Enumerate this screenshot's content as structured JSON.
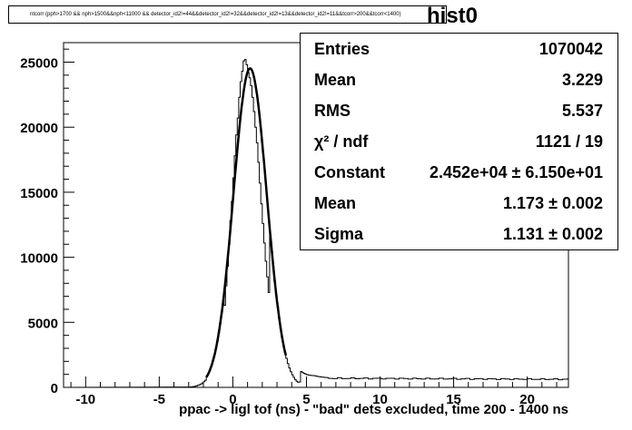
{
  "chart_data": {
    "type": "histogram",
    "hist_name": "hist0",
    "cut_expression": "ntcorr (pph>1700 && nph>1500&&nph<11000 && detector_id2!=44&&detector_id2!=32&&detector_id2!=13&&detector_id2!=11&&tcorr>200&&tcorr<1400)",
    "xlabel": "ppac -> ligl tof (ns) - \"bad\" dets excluded, time 200 - 1400 ns",
    "ylabel": "",
    "xlim": [
      -11.5,
      22.8
    ],
    "ylim": [
      0,
      26500
    ],
    "x_ticks": [
      "-10",
      "-5",
      "0",
      "5",
      "10",
      "15",
      "20"
    ],
    "x_tick_values": [
      -10,
      -5,
      0,
      5,
      10,
      15,
      20
    ],
    "y_ticks": [
      "0",
      "5000",
      "10000",
      "15000",
      "20000",
      "25000"
    ],
    "y_tick_values": [
      0,
      5000,
      10000,
      15000,
      20000,
      25000
    ],
    "bin_width": 0.1,
    "peak_bins": {
      "x": [
        -0.6,
        -0.5,
        -0.4,
        -0.3,
        -0.2,
        -0.1,
        0.0,
        0.1,
        0.2,
        0.3,
        0.4,
        0.5,
        0.6,
        0.7,
        0.8,
        0.9,
        1.0,
        1.1,
        1.2,
        1.3,
        1.4,
        1.5,
        1.6,
        1.7,
        1.8,
        1.9,
        2.0,
        2.1,
        2.2,
        2.3,
        2.4
      ],
      "y": [
        6300,
        7800,
        9300,
        11000,
        12800,
        14300,
        16100,
        17800,
        19400,
        20700,
        22300,
        23500,
        24300,
        25100,
        25200,
        24800,
        24200,
        23800,
        23200,
        22300,
        21200,
        20000,
        18800,
        17300,
        15700,
        14100,
        12600,
        11100,
        9700,
        8500,
        7300
      ]
    },
    "fit": {
      "function": "gaus",
      "constant": 24520,
      "mean": 1.173,
      "sigma": 1.131,
      "range": [
        -1.8,
        3.6
      ]
    },
    "background": {
      "left_level": 0,
      "right_tail_level": 700
    },
    "stats_box": [
      {
        "label": "Entries",
        "value": "1070042"
      },
      {
        "label": "Mean",
        "value": "3.229"
      },
      {
        "label": "RMS",
        "value": "5.537"
      },
      {
        "label": "χ² / ndf",
        "value": "1121 / 19"
      },
      {
        "label": "Constant",
        "value": "2.452e+04 ± 6.150e+01"
      },
      {
        "label": "Mean",
        "value": "1.173 ± 0.002"
      },
      {
        "label": "Sigma",
        "value": "1.131 ± 0.002"
      }
    ]
  }
}
